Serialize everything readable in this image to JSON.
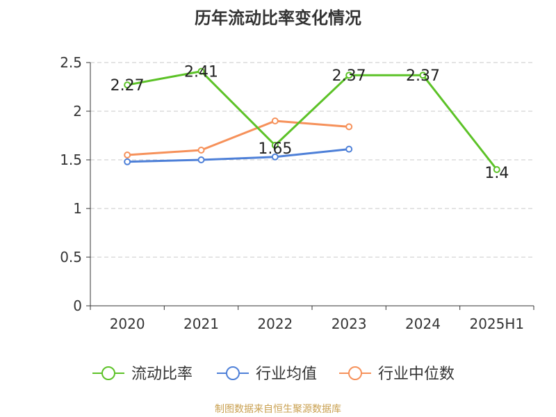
{
  "chart_data": {
    "type": "line",
    "title": "历年流动比率变化情况",
    "categories": [
      "2020",
      "2021",
      "2022",
      "2023",
      "2024",
      "2025H1"
    ],
    "ylim": [
      0,
      2.5
    ],
    "yticks": [
      0,
      0.5,
      1,
      1.5,
      2,
      2.5
    ],
    "ytick_labels": [
      "0",
      "0.5",
      "1",
      "1.5",
      "2",
      "2.5"
    ],
    "grid": true,
    "legend_position": "bottom",
    "series": [
      {
        "name": "流动比率",
        "color": "#5cc227",
        "values": [
          2.27,
          2.41,
          1.65,
          2.37,
          2.37,
          1.4
        ],
        "labels": [
          "2.27",
          "2.41",
          "1.65",
          "2.37",
          "2.37",
          "1.4"
        ],
        "show_labels": true
      },
      {
        "name": "行业均值",
        "color": "#4e80d8",
        "values": [
          1.48,
          1.5,
          1.53,
          1.61,
          null,
          null
        ],
        "show_labels": false
      },
      {
        "name": "行业中位数",
        "color": "#f6915a",
        "values": [
          1.55,
          1.6,
          1.9,
          1.84,
          null,
          null
        ],
        "show_labels": false
      }
    ],
    "source_note": "制图数据来自恒生聚源数据库"
  }
}
